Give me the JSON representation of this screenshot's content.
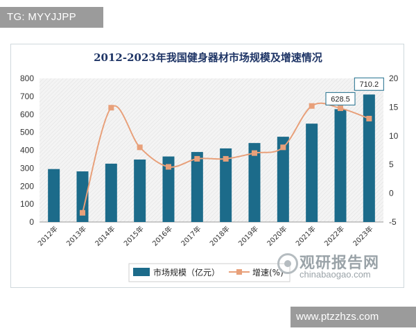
{
  "watermark_tag": "TG: MYYJJPP",
  "footer_url": "www.ptzzhzs.com",
  "source_watermark": {
    "cn": "观研报告网",
    "en": "chinabaogao.com"
  },
  "chart_data": {
    "type": "bar",
    "title": "2012-2023年我国健身器材市场规模及增速情况",
    "categories": [
      "2012年",
      "2013年",
      "2014年",
      "2015年",
      "2016年",
      "2017年",
      "2018年",
      "2019年",
      "2020年",
      "2021年",
      "2022年",
      "2023年"
    ],
    "series": [
      {
        "name": "市场规模（亿元）",
        "type": "bar",
        "axis": "left",
        "color": "#1c6b8a",
        "values": [
          295,
          282,
          325,
          348,
          365,
          390,
          410,
          440,
          475,
          548,
          628.5,
          710.2
        ]
      },
      {
        "name": "增速(%)",
        "type": "line",
        "axis": "right",
        "color": "#e8a07a",
        "values": [
          null,
          -3.4,
          14.9,
          8,
          4.6,
          6,
          6,
          7,
          8,
          15.2,
          14.8,
          13
        ]
      }
    ],
    "callouts": [
      {
        "index": 10,
        "text": "628.5"
      },
      {
        "index": 11,
        "text": "710.2"
      }
    ],
    "ylim_left": [
      0,
      800
    ],
    "yticks_left": [
      0,
      100,
      200,
      300,
      400,
      500,
      600,
      700,
      800
    ],
    "ylim_right": [
      -5,
      20
    ],
    "yticks_right": [
      -5,
      0,
      5,
      10,
      15,
      20
    ],
    "grid": false,
    "legend_position": "bottom"
  }
}
